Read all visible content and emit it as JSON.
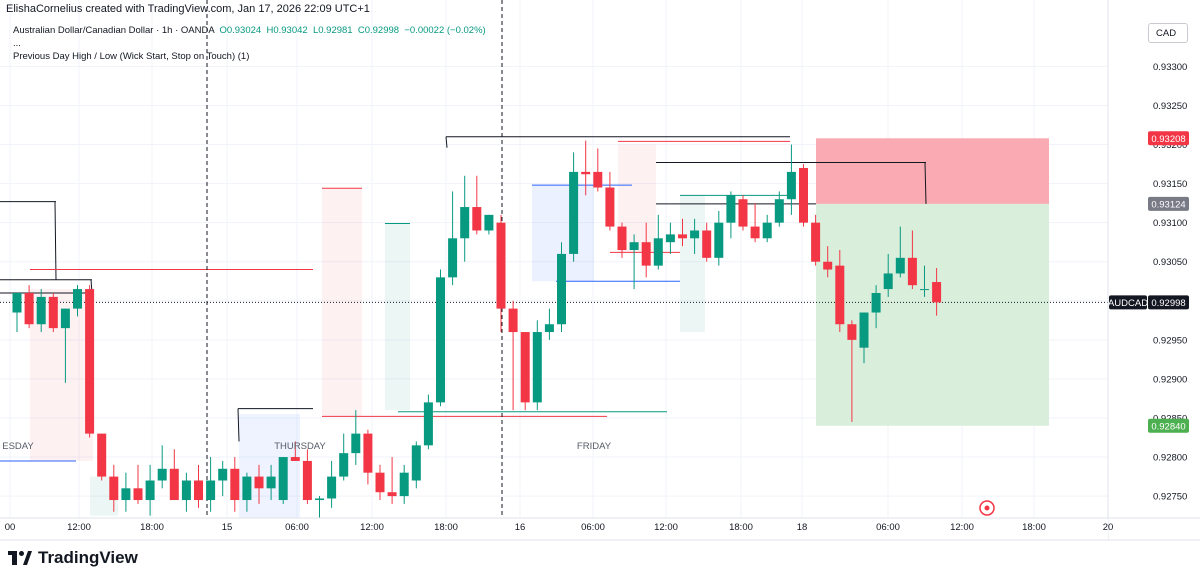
{
  "header": {
    "created_by": "ElishaCornelius created with TradingView.com, Jan 17, 2026 22:09 UTC+1"
  },
  "legend": {
    "symbol": "Australian Dollar/Canadian Dollar · 1h · OANDA",
    "open": "O0.93024",
    "high": "H0.93042",
    "low": "L0.92981",
    "close": "C0.92998",
    "change": "−0.00022 (−0.02%)",
    "more": "...",
    "indicator": "Previous Day High / Low (Wick Start, Stop on Touch) (1)"
  },
  "currency_button": "CAD",
  "brand": "TradingView",
  "colors": {
    "up": "#089981",
    "down": "#f23645",
    "stop_zone": "#f9aab2",
    "target_zone": "#d9efdb",
    "stop_label": "#f23645",
    "entry_label": "#787b86",
    "target_label": "#4caf50",
    "symbol_label": "#131722"
  },
  "chart_data": {
    "type": "candlestick",
    "symbol_tag": "AUDCAD",
    "current_price": "0.92998",
    "ylim": [
      0.92722,
      0.93385
    ],
    "y_ticks": [
      "0.93300",
      "0.93250",
      "0.93200",
      "0.93150",
      "0.93100",
      "0.93050",
      "0.93000",
      "0.92950",
      "0.92900",
      "0.92850",
      "0.92800",
      "0.92750"
    ],
    "x_ticks": [
      "00",
      "12:00",
      "18:00",
      "15",
      "06:00",
      "12:00",
      "18:00",
      "16",
      "06:00",
      "12:00",
      "18:00",
      "18",
      "06:00",
      "12:00",
      "18:00",
      "20"
    ],
    "day_labels": [
      "ESDAY",
      "THURSDAY",
      "FRIDAY"
    ],
    "position": {
      "stop": "0.93208",
      "entry": "0.93124",
      "target": "0.92840"
    },
    "candles": [
      {
        "o": 0.92985,
        "h": 0.9301,
        "l": 0.9296,
        "c": 0.9301
      },
      {
        "o": 0.9301,
        "h": 0.9302,
        "l": 0.92965,
        "c": 0.9297
      },
      {
        "o": 0.9297,
        "h": 0.93015,
        "l": 0.9296,
        "c": 0.93005
      },
      {
        "o": 0.93005,
        "h": 0.9301,
        "l": 0.9296,
        "c": 0.92965
      },
      {
        "o": 0.92965,
        "h": 0.9299,
        "l": 0.92895,
        "c": 0.9299
      },
      {
        "o": 0.9299,
        "h": 0.9302,
        "l": 0.9298,
        "c": 0.93015
      },
      {
        "o": 0.93015,
        "h": 0.9302,
        "l": 0.92825,
        "c": 0.9283
      },
      {
        "o": 0.9283,
        "h": 0.9283,
        "l": 0.9277,
        "c": 0.92775
      },
      {
        "o": 0.92775,
        "h": 0.9279,
        "l": 0.9273,
        "c": 0.92745
      },
      {
        "o": 0.92745,
        "h": 0.9278,
        "l": 0.9273,
        "c": 0.9276
      },
      {
        "o": 0.9276,
        "h": 0.9279,
        "l": 0.9274,
        "c": 0.92745
      },
      {
        "o": 0.92745,
        "h": 0.9279,
        "l": 0.92725,
        "c": 0.9277
      },
      {
        "o": 0.9277,
        "h": 0.92815,
        "l": 0.9276,
        "c": 0.92785
      },
      {
        "o": 0.92785,
        "h": 0.9281,
        "l": 0.92745,
        "c": 0.92745
      },
      {
        "o": 0.92745,
        "h": 0.9278,
        "l": 0.9273,
        "c": 0.9277
      },
      {
        "o": 0.9277,
        "h": 0.9279,
        "l": 0.92735,
        "c": 0.92745
      },
      {
        "o": 0.92745,
        "h": 0.928,
        "l": 0.9273,
        "c": 0.9277
      },
      {
        "o": 0.9277,
        "h": 0.92795,
        "l": 0.9275,
        "c": 0.92785
      },
      {
        "o": 0.92785,
        "h": 0.928,
        "l": 0.9273,
        "c": 0.92745
      },
      {
        "o": 0.92745,
        "h": 0.9278,
        "l": 0.9273,
        "c": 0.92775
      },
      {
        "o": 0.92775,
        "h": 0.9279,
        "l": 0.9274,
        "c": 0.9276
      },
      {
        "o": 0.9276,
        "h": 0.9279,
        "l": 0.92745,
        "c": 0.92775
      },
      {
        "o": 0.92745,
        "h": 0.928,
        "l": 0.9274,
        "c": 0.928
      },
      {
        "o": 0.928,
        "h": 0.9282,
        "l": 0.92795,
        "c": 0.92795
      },
      {
        "o": 0.92795,
        "h": 0.9281,
        "l": 0.9274,
        "c": 0.92745
      },
      {
        "o": 0.92745,
        "h": 0.9275,
        "l": 0.9272,
        "c": 0.92747
      },
      {
        "o": 0.92747,
        "h": 0.92795,
        "l": 0.92735,
        "c": 0.92775
      },
      {
        "o": 0.92775,
        "h": 0.9283,
        "l": 0.9277,
        "c": 0.92805
      },
      {
        "o": 0.92805,
        "h": 0.9286,
        "l": 0.9279,
        "c": 0.9283
      },
      {
        "o": 0.9283,
        "h": 0.92835,
        "l": 0.92765,
        "c": 0.9278
      },
      {
        "o": 0.9278,
        "h": 0.9279,
        "l": 0.92745,
        "c": 0.92755
      },
      {
        "o": 0.92755,
        "h": 0.928,
        "l": 0.9274,
        "c": 0.9275
      },
      {
        "o": 0.9275,
        "h": 0.9279,
        "l": 0.9274,
        "c": 0.9278
      },
      {
        "o": 0.9277,
        "h": 0.9282,
        "l": 0.9276,
        "c": 0.92815
      },
      {
        "o": 0.92815,
        "h": 0.9288,
        "l": 0.9281,
        "c": 0.9287
      },
      {
        "o": 0.9287,
        "h": 0.9304,
        "l": 0.92865,
        "c": 0.9303
      },
      {
        "o": 0.9303,
        "h": 0.9314,
        "l": 0.9302,
        "c": 0.9308
      },
      {
        "o": 0.9308,
        "h": 0.9316,
        "l": 0.9305,
        "c": 0.9312
      },
      {
        "o": 0.9312,
        "h": 0.9316,
        "l": 0.93085,
        "c": 0.9309
      },
      {
        "o": 0.9309,
        "h": 0.9311,
        "l": 0.93085,
        "c": 0.9311
      },
      {
        "o": 0.931,
        "h": 0.9311,
        "l": 0.9296,
        "c": 0.9299
      },
      {
        "o": 0.9299,
        "h": 0.93,
        "l": 0.9286,
        "c": 0.9296
      },
      {
        "o": 0.9296,
        "h": 0.9296,
        "l": 0.9286,
        "c": 0.9287
      },
      {
        "o": 0.9287,
        "h": 0.92975,
        "l": 0.9286,
        "c": 0.9296
      },
      {
        "o": 0.9296,
        "h": 0.9299,
        "l": 0.9295,
        "c": 0.9297
      },
      {
        "o": 0.9297,
        "h": 0.93075,
        "l": 0.9296,
        "c": 0.9306
      },
      {
        "o": 0.9306,
        "h": 0.9319,
        "l": 0.9305,
        "c": 0.93165
      },
      {
        "o": 0.93165,
        "h": 0.93205,
        "l": 0.93135,
        "c": 0.93162
      },
      {
        "o": 0.93165,
        "h": 0.93195,
        "l": 0.9314,
        "c": 0.93145
      },
      {
        "o": 0.93145,
        "h": 0.93165,
        "l": 0.9309,
        "c": 0.93095
      },
      {
        "o": 0.93095,
        "h": 0.931,
        "l": 0.93055,
        "c": 0.93065
      },
      {
        "o": 0.93065,
        "h": 0.93085,
        "l": 0.93015,
        "c": 0.93075
      },
      {
        "o": 0.93075,
        "h": 0.931,
        "l": 0.9303,
        "c": 0.93045
      },
      {
        "o": 0.93045,
        "h": 0.9311,
        "l": 0.9304,
        "c": 0.9308
      },
      {
        "o": 0.93075,
        "h": 0.931,
        "l": 0.9306,
        "c": 0.93085
      },
      {
        "o": 0.93085,
        "h": 0.93105,
        "l": 0.9307,
        "c": 0.9308
      },
      {
        "o": 0.9308,
        "h": 0.93105,
        "l": 0.9306,
        "c": 0.9309
      },
      {
        "o": 0.9309,
        "h": 0.931,
        "l": 0.9305,
        "c": 0.93055
      },
      {
        "o": 0.93055,
        "h": 0.93115,
        "l": 0.93045,
        "c": 0.931
      },
      {
        "o": 0.931,
        "h": 0.9314,
        "l": 0.9308,
        "c": 0.93135
      },
      {
        "o": 0.9313,
        "h": 0.93135,
        "l": 0.9309,
        "c": 0.93095
      },
      {
        "o": 0.93095,
        "h": 0.93125,
        "l": 0.93075,
        "c": 0.9308
      },
      {
        "o": 0.9308,
        "h": 0.9311,
        "l": 0.93075,
        "c": 0.931
      },
      {
        "o": 0.931,
        "h": 0.9314,
        "l": 0.93095,
        "c": 0.9313
      },
      {
        "o": 0.9313,
        "h": 0.932,
        "l": 0.9311,
        "c": 0.93165
      },
      {
        "o": 0.9317,
        "h": 0.93175,
        "l": 0.93095,
        "c": 0.931
      },
      {
        "o": 0.931,
        "h": 0.9311,
        "l": 0.93045,
        "c": 0.9305
      },
      {
        "o": 0.9305,
        "h": 0.9307,
        "l": 0.9303,
        "c": 0.9304
      },
      {
        "o": 0.93045,
        "h": 0.93065,
        "l": 0.9296,
        "c": 0.9297
      },
      {
        "o": 0.9297,
        "h": 0.92975,
        "l": 0.92845,
        "c": 0.9295
      },
      {
        "o": 0.9294,
        "h": 0.92985,
        "l": 0.9292,
        "c": 0.92985
      },
      {
        "o": 0.92985,
        "h": 0.9302,
        "l": 0.92965,
        "c": 0.9301
      },
      {
        "o": 0.93015,
        "h": 0.9306,
        "l": 0.93005,
        "c": 0.93035
      },
      {
        "o": 0.93035,
        "h": 0.93095,
        "l": 0.9303,
        "c": 0.93055
      },
      {
        "o": 0.93055,
        "h": 0.9309,
        "l": 0.93015,
        "c": 0.9302
      },
      {
        "o": 0.93015,
        "h": 0.93045,
        "l": 0.93005,
        "c": 0.93015
      },
      {
        "o": 0.93024,
        "h": 0.93042,
        "l": 0.92981,
        "c": 0.92998
      }
    ]
  }
}
